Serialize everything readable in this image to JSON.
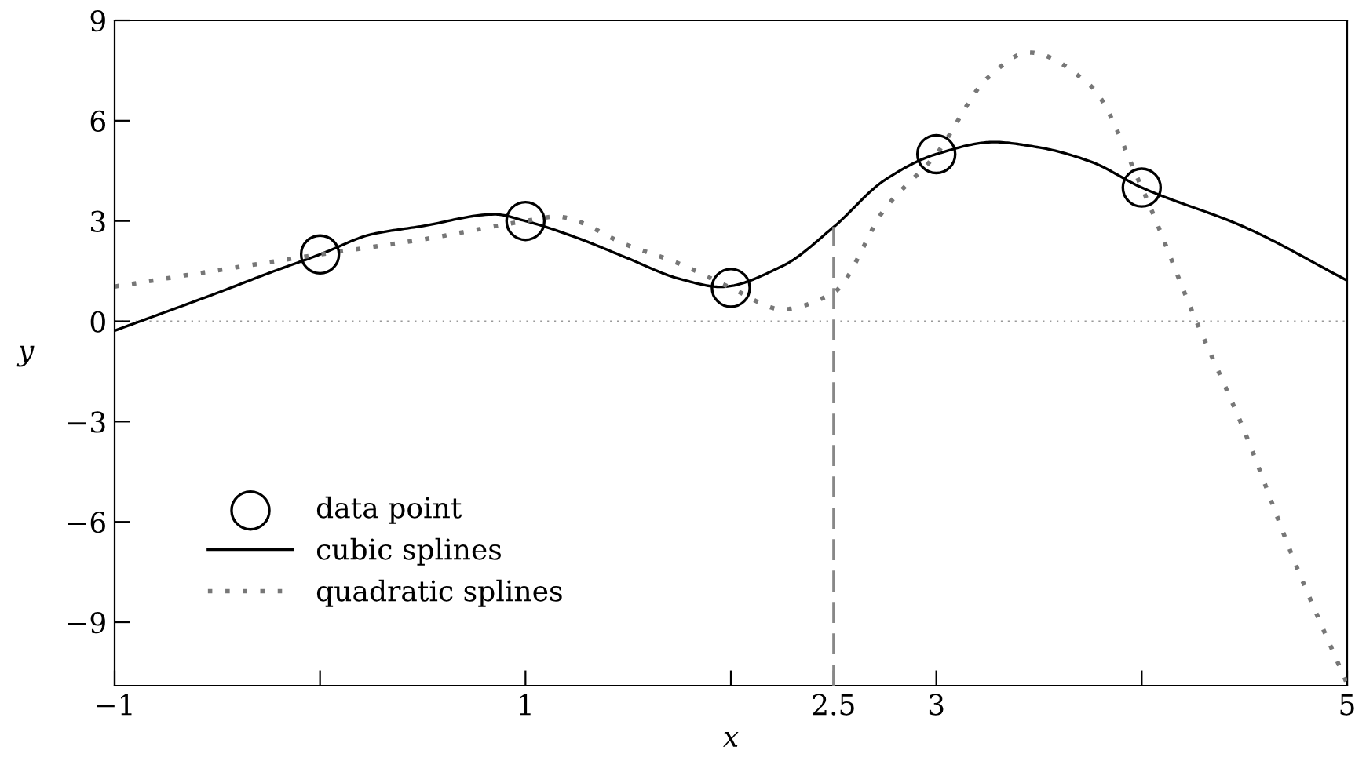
{
  "chart_data": {
    "type": "line",
    "xlabel": "x",
    "ylabel": "y",
    "xlim": [
      -1,
      5
    ],
    "ylim": [
      -10.9,
      9
    ],
    "xticks": [
      -1,
      {
        "value": 0,
        "label": null
      },
      1,
      {
        "value": 2,
        "label": null
      },
      2.5,
      3,
      {
        "value": 4,
        "label": null
      },
      5
    ],
    "yticks": [
      -9,
      -6,
      -3,
      0,
      3,
      6,
      9
    ],
    "grid": false,
    "legend": "bottom left",
    "ref_lines": [
      {
        "axis": "y",
        "value": 0,
        "color": "#999999",
        "line_style": "dotted"
      }
    ],
    "series": [
      {
        "name": "data point",
        "type": "scatter",
        "color": "#000000",
        "marker": "circle",
        "x": [
          0,
          1,
          2,
          3,
          4
        ],
        "values": [
          2,
          3,
          1,
          5,
          4
        ]
      },
      {
        "name": "cubic splines",
        "type": "line",
        "color": "#000000",
        "line_style": "solid",
        "marker": "none",
        "x": [
          -1,
          -0.5,
          -0.25,
          0,
          0.25,
          0.5,
          0.85,
          1,
          1.25,
          1.5,
          1.75,
          1.95,
          2.25,
          2.5,
          2.75,
          3,
          3.28,
          3.5,
          3.75,
          4,
          4.5,
          5
        ],
        "values": [
          -0.28,
          0.85,
          1.44,
          2,
          2.6,
          2.85,
          3.2,
          3,
          2.5,
          1.88,
          1.27,
          1.03,
          1.65,
          2.82,
          4.23,
          5,
          5.36,
          5.2,
          4.78,
          4,
          2.82,
          1.22
        ]
      },
      {
        "name": "quadratic splines",
        "type": "line",
        "color": "#777777",
        "line_style": "dotted",
        "marker": "none",
        "x": [
          -1,
          0,
          0.5,
          1,
          1.15,
          1.5,
          1.75,
          2,
          2.25,
          2.5,
          2.75,
          3,
          3.25,
          3.45,
          3.75,
          4,
          4.25,
          4.5,
          4.75,
          5
        ],
        "values": [
          1.04,
          2,
          2.45,
          3,
          3.13,
          2.27,
          1.72,
          1,
          0.36,
          0.86,
          3.37,
          5,
          7.28,
          8.04,
          7.05,
          4,
          0.23,
          -3.29,
          -7.28,
          -10.85
        ]
      },
      {
        "color": "#888888",
        "line_style": "dashed",
        "marker": "none",
        "x": [
          2.5,
          2.5
        ],
        "values": [
          -10.9,
          2.82
        ]
      }
    ]
  }
}
